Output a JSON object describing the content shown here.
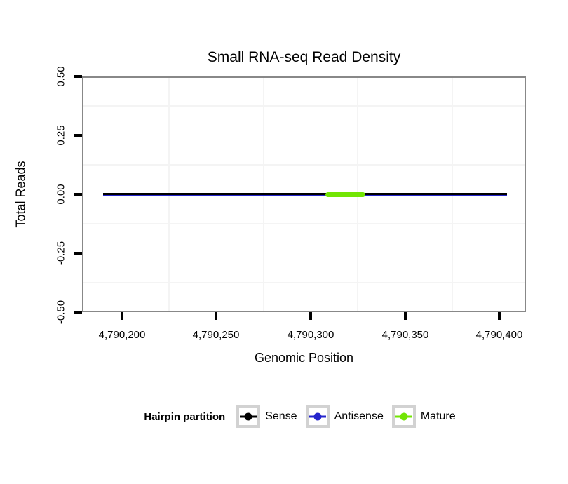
{
  "chart_data": {
    "type": "line",
    "title": "Small RNA-seq Read Density",
    "xlabel": "Genomic Position",
    "ylabel": "Total Reads",
    "xlim": [
      4790179,
      4790414
    ],
    "ylim": [
      -0.5,
      0.5
    ],
    "x_ticks": [
      {
        "value": 4790200,
        "label": "4,790,200"
      },
      {
        "value": 4790250,
        "label": "4,790,250"
      },
      {
        "value": 4790300,
        "label": "4,790,300"
      },
      {
        "value": 4790350,
        "label": "4,790,350"
      },
      {
        "value": 4790400,
        "label": "4,790,400"
      }
    ],
    "y_ticks": [
      {
        "value": 0.5,
        "label": "0.50"
      },
      {
        "value": 0.25,
        "label": "0.25"
      },
      {
        "value": 0.0,
        "label": "0.00"
      },
      {
        "value": -0.25,
        "label": "-0.25"
      },
      {
        "value": -0.5,
        "label": "-0.50"
      }
    ],
    "grid": {
      "major_shown": false,
      "minor_x": [
        4790225,
        4790275,
        4790325,
        4790375
      ],
      "minor_y": [
        0.375,
        0.125,
        -0.125,
        -0.375
      ],
      "color": "#f4f4f4"
    },
    "panel_border_color": "#888888",
    "tick_color": "#000000",
    "series": [
      {
        "name": "Antisense",
        "color": "#2424cc",
        "y": 0,
        "x_start": 4790190,
        "x_end": 4790404,
        "thickness": 4,
        "dy": 0,
        "rounded": false
      },
      {
        "name": "Sense",
        "color": "#000000",
        "y": 0,
        "x_start": 4790190,
        "x_end": 4790404,
        "thickness": 3,
        "dy": -1,
        "rounded": false
      },
      {
        "name": "Mature",
        "color": "#72e504",
        "y": 0,
        "x_start": 4790308,
        "x_end": 4790329,
        "thickness": 7,
        "dy": 0,
        "rounded": true
      }
    ],
    "legend": {
      "title": "Hairpin partition",
      "position": "bottom",
      "entries": [
        {
          "label": "Sense",
          "color": "#000000"
        },
        {
          "label": "Antisense",
          "color": "#2424cc"
        },
        {
          "label": "Mature",
          "color": "#72e504"
        }
      ]
    }
  }
}
